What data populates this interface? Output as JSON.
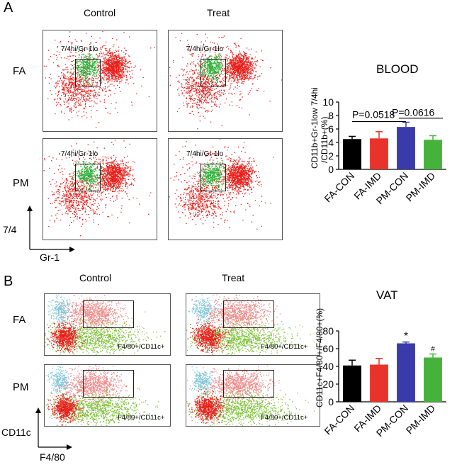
{
  "panel_a": {
    "letter": "A",
    "col_titles": [
      "Control",
      "Treat"
    ],
    "row_labels": [
      "FA",
      "PM"
    ],
    "gate_label": "7/4hi/Gr-1lo",
    "y_axis": "7/4",
    "x_axis": "Gr-1"
  },
  "panel_b": {
    "letter": "B",
    "col_titles": [
      "Control",
      "Treat"
    ],
    "row_labels": [
      "FA",
      "PM"
    ],
    "gate_label": "F4/80+/CD11c+",
    "y_axis": "CD11c",
    "x_axis": "F4/80"
  },
  "colors": {
    "bar_black": "#000000",
    "bar_red": "#e8332a",
    "bar_blue": "#3a3aa8",
    "bar_green": "#46b23c",
    "dots_red": "#e8201c",
    "dots_green": "#2db33a",
    "dots_cyan": "#7cc6d8",
    "dots_pink": "#f08a8a",
    "dots_lime": "#7ec23a"
  },
  "chart_data": [
    {
      "type": "bar",
      "title": "BLOOD",
      "categories": [
        "FA-CON",
        "FA-IMD",
        "PM-CON",
        "PM-IMD"
      ],
      "values": [
        4.5,
        4.6,
        6.3,
        4.4
      ],
      "errors": [
        0.4,
        1.0,
        0.7,
        0.6
      ],
      "ylabel_line1": "CD11b+Gr-1low 7/4hi",
      "ylabel_line2": "/CD11b+(%)",
      "ylim": [
        0,
        10
      ],
      "yticks": [
        "0",
        "2",
        "4",
        "6",
        "8",
        "10"
      ],
      "annotations": [
        {
          "text": "P=0.0518",
          "from": "FA-CON",
          "to": "PM-CON"
        },
        {
          "text": "P=0.0616",
          "from": "PM-CON",
          "to": "PM-IMD"
        }
      ]
    },
    {
      "type": "bar",
      "title": "VAT",
      "categories": [
        "FA-CON",
        "FA-IMD",
        "PM-CON",
        "PM-IMD"
      ],
      "values": [
        41,
        42,
        66,
        50
      ],
      "errors": [
        6,
        7,
        1.5,
        4
      ],
      "ylabel": "CD11c+F4/80+/F4/80+(%)",
      "ylim": [
        0,
        80
      ],
      "yticks": [
        "0",
        "20",
        "40",
        "60",
        "80"
      ],
      "markers": [
        "",
        "",
        "*",
        "#"
      ]
    }
  ]
}
